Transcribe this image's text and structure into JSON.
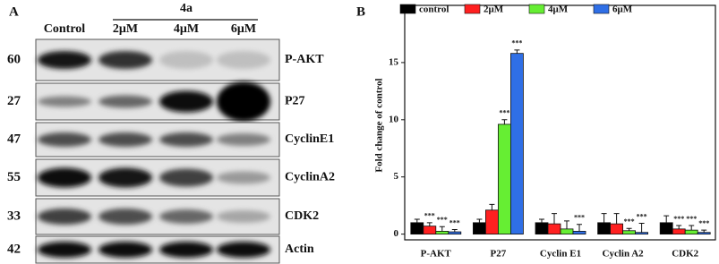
{
  "blot": {
    "panel_label": "A",
    "treatment": "4a",
    "lanes": [
      "Control",
      "2μM",
      "4μM",
      "6μM"
    ],
    "rows": [
      {
        "mw": "60",
        "protein": "P-AKT"
      },
      {
        "mw": "27",
        "protein": "P27"
      },
      {
        "mw": "47",
        "protein": "CyclinE1"
      },
      {
        "mw": "55",
        "protein": "CyclinA2"
      },
      {
        "mw": "33",
        "protein": "CDK2"
      },
      {
        "mw": "42",
        "protein": "Actin"
      }
    ]
  },
  "chart_data": {
    "type": "bar",
    "panel_label": "B",
    "y_label": "Fold change of control",
    "categories": [
      "P-AKT",
      "P27",
      "Cyclin E1",
      "Cyclin A2",
      "CDK2"
    ],
    "series": [
      {
        "name": "control",
        "color": "#000000",
        "values": [
          1.0,
          1.0,
          1.0,
          1.0,
          1.0
        ],
        "errors": [
          0.3,
          0.3,
          0.3,
          0.8,
          0.6
        ]
      },
      {
        "name": "2μM",
        "color": "#ff2020",
        "values": [
          0.7,
          2.1,
          0.9,
          0.9,
          0.45
        ],
        "errors": [
          0.3,
          0.5,
          0.9,
          0.9,
          0.3
        ],
        "significance": [
          "***",
          null,
          null,
          null,
          "***"
        ]
      },
      {
        "name": "4μM",
        "color": "#66ee33",
        "values": [
          0.25,
          9.6,
          0.45,
          0.3,
          0.35
        ],
        "errors": [
          0.4,
          0.4,
          0.7,
          0.2,
          0.4
        ],
        "significance": [
          "***",
          "***",
          null,
          "***",
          "***"
        ]
      },
      {
        "name": "6μM",
        "color": "#2f6fe6",
        "values": [
          0.2,
          15.8,
          0.25,
          0.15,
          0.15
        ],
        "errors": [
          0.2,
          0.3,
          0.6,
          0.8,
          0.2
        ],
        "significance": [
          "***",
          "***",
          "***",
          "***",
          "***"
        ]
      }
    ],
    "ylim": [
      -0.5,
      20
    ],
    "yticks": [
      0,
      5,
      10,
      15
    ],
    "legend": "top"
  }
}
